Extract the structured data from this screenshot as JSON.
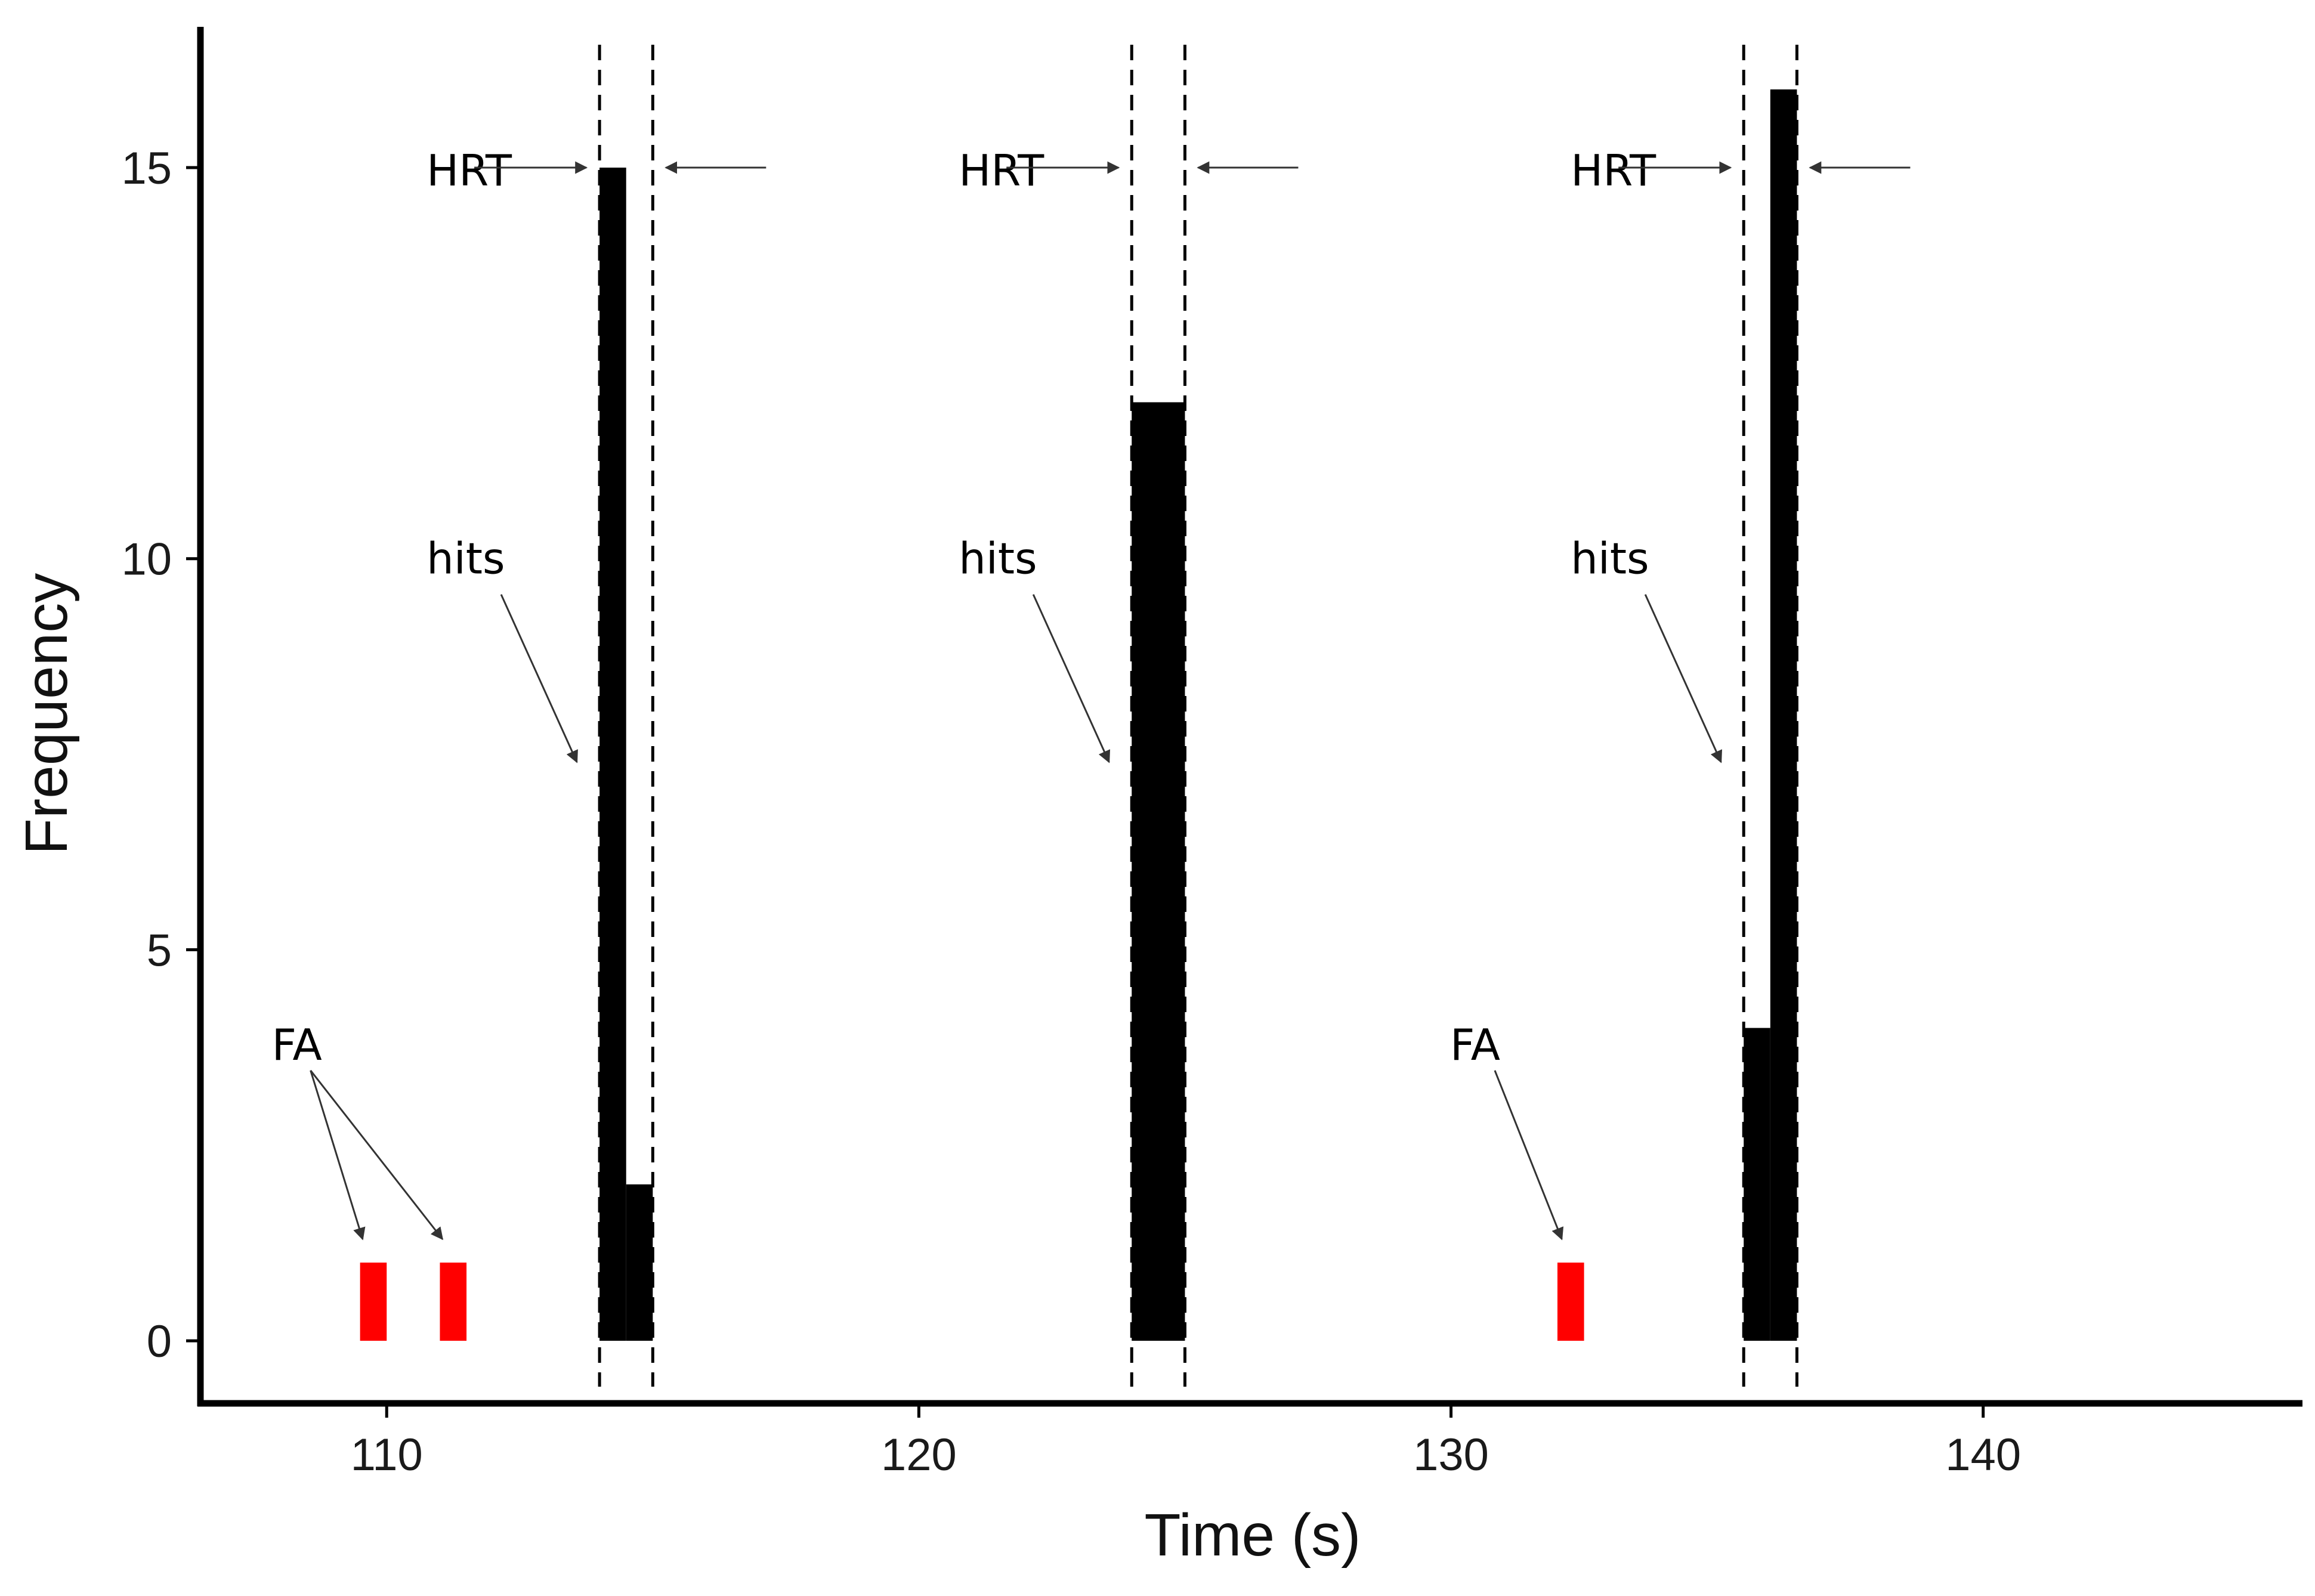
{
  "chart_data": {
    "type": "bar",
    "title": "",
    "xlabel": "Time (s)",
    "ylabel": "Frequency",
    "xlim": [
      106.5,
      146
    ],
    "ylim": [
      -0.8,
      16.8
    ],
    "x_ticks": [
      110,
      120,
      130,
      140
    ],
    "y_ticks": [
      0,
      5,
      10,
      15
    ],
    "grid": false,
    "series": [
      {
        "name": "hits",
        "color": "#000000",
        "bars": [
          {
            "x0": 114.0,
            "x1": 114.5,
            "value": 15
          },
          {
            "x0": 114.5,
            "x1": 115.0,
            "value": 2
          },
          {
            "x0": 124.0,
            "x1": 125.0,
            "value": 12
          },
          {
            "x0": 135.5,
            "x1": 136.0,
            "value": 4
          },
          {
            "x0": 136.0,
            "x1": 136.5,
            "value": 16
          }
        ]
      },
      {
        "name": "FA",
        "color": "#ff0000",
        "bars": [
          {
            "x0": 109.5,
            "x1": 110.0,
            "value": 1
          },
          {
            "x0": 111.0,
            "x1": 111.5,
            "value": 1
          },
          {
            "x0": 132.0,
            "x1": 132.5,
            "value": 1
          }
        ]
      }
    ],
    "hrt_windows": [
      {
        "start": 114.0,
        "end": 115.0
      },
      {
        "start": 124.0,
        "end": 125.0
      },
      {
        "start": 135.5,
        "end": 136.5
      }
    ],
    "annotations": {
      "hrt_label": "HRT",
      "hits_label": "hits",
      "fa_label": "FA"
    }
  }
}
